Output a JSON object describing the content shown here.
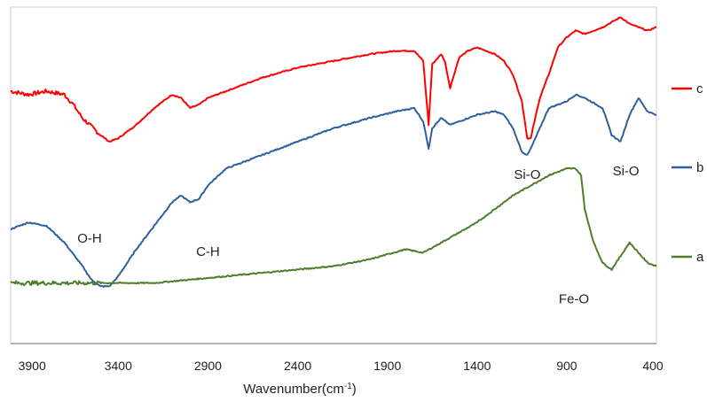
{
  "chart_data": {
    "type": "line",
    "title": "",
    "xlabel": "Wavenumber(cm",
    "xlabel_sup": "-1",
    "xlabel_close": ")",
    "ylabel": "",
    "xlim": [
      4000,
      400
    ],
    "x_reversed": true,
    "y_unit_range": [
      0,
      100
    ],
    "xticks": [
      3900,
      3400,
      2900,
      2400,
      1900,
      1400,
      900,
      400
    ],
    "grid": false,
    "legend_placement": "right",
    "series": [
      {
        "name": "c",
        "color": "#ff0000",
        "points": [
          [
            4000,
            75
          ],
          [
            3900,
            74
          ],
          [
            3800,
            75
          ],
          [
            3700,
            74
          ],
          [
            3650,
            71
          ],
          [
            3600,
            67
          ],
          [
            3500,
            62
          ],
          [
            3450,
            60
          ],
          [
            3400,
            61
          ],
          [
            3300,
            65
          ],
          [
            3200,
            70
          ],
          [
            3100,
            74
          ],
          [
            3050,
            73
          ],
          [
            3000,
            70
          ],
          [
            2950,
            71
          ],
          [
            2900,
            73
          ],
          [
            2800,
            75
          ],
          [
            2600,
            79
          ],
          [
            2400,
            82
          ],
          [
            2200,
            84
          ],
          [
            2000,
            86
          ],
          [
            1850,
            87
          ],
          [
            1750,
            87
          ],
          [
            1700,
            84
          ],
          [
            1670,
            65
          ],
          [
            1650,
            83
          ],
          [
            1600,
            86
          ],
          [
            1580,
            84
          ],
          [
            1550,
            76
          ],
          [
            1500,
            85
          ],
          [
            1450,
            87
          ],
          [
            1400,
            88
          ],
          [
            1350,
            87
          ],
          [
            1300,
            86
          ],
          [
            1250,
            84
          ],
          [
            1200,
            80
          ],
          [
            1150,
            72
          ],
          [
            1120,
            61
          ],
          [
            1100,
            61
          ],
          [
            1080,
            66
          ],
          [
            1050,
            73
          ],
          [
            1000,
            80
          ],
          [
            950,
            88
          ],
          [
            900,
            91
          ],
          [
            850,
            93
          ],
          [
            800,
            92
          ],
          [
            700,
            94
          ],
          [
            600,
            97
          ],
          [
            550,
            95
          ],
          [
            500,
            94
          ],
          [
            450,
            93
          ],
          [
            400,
            94
          ]
        ]
      },
      {
        "name": "b",
        "color": "#2e5f9e",
        "points": [
          [
            4000,
            34
          ],
          [
            3900,
            36
          ],
          [
            3800,
            35
          ],
          [
            3700,
            30
          ],
          [
            3600,
            23
          ],
          [
            3550,
            19
          ],
          [
            3500,
            17
          ],
          [
            3450,
            17
          ],
          [
            3400,
            20
          ],
          [
            3300,
            28
          ],
          [
            3200,
            35
          ],
          [
            3100,
            42
          ],
          [
            3050,
            44
          ],
          [
            3000,
            42
          ],
          [
            2950,
            43
          ],
          [
            2900,
            47
          ],
          [
            2800,
            52
          ],
          [
            2600,
            56
          ],
          [
            2400,
            60
          ],
          [
            2200,
            64
          ],
          [
            2000,
            67
          ],
          [
            1850,
            69
          ],
          [
            1750,
            70
          ],
          [
            1700,
            66
          ],
          [
            1670,
            58
          ],
          [
            1650,
            64
          ],
          [
            1600,
            67
          ],
          [
            1550,
            65
          ],
          [
            1500,
            66
          ],
          [
            1450,
            67
          ],
          [
            1400,
            68
          ],
          [
            1300,
            69
          ],
          [
            1250,
            68
          ],
          [
            1200,
            64
          ],
          [
            1150,
            57
          ],
          [
            1120,
            56
          ],
          [
            1100,
            58
          ],
          [
            1050,
            64
          ],
          [
            1000,
            70
          ],
          [
            950,
            71
          ],
          [
            900,
            72
          ],
          [
            850,
            74
          ],
          [
            800,
            73
          ],
          [
            700,
            70
          ],
          [
            650,
            62
          ],
          [
            600,
            60
          ],
          [
            550,
            68
          ],
          [
            500,
            73
          ],
          [
            450,
            69
          ],
          [
            400,
            68
          ]
        ]
      },
      {
        "name": "a",
        "color": "#4d7f2a",
        "points": [
          [
            4000,
            18
          ],
          [
            3800,
            18
          ],
          [
            3600,
            18
          ],
          [
            3400,
            18
          ],
          [
            3200,
            18
          ],
          [
            3000,
            19
          ],
          [
            2800,
            20
          ],
          [
            2600,
            21
          ],
          [
            2400,
            22
          ],
          [
            2200,
            23
          ],
          [
            2000,
            25
          ],
          [
            1800,
            28
          ],
          [
            1700,
            27
          ],
          [
            1600,
            30
          ],
          [
            1400,
            36
          ],
          [
            1200,
            44
          ],
          [
            1000,
            50
          ],
          [
            900,
            52
          ],
          [
            850,
            52
          ],
          [
            820,
            50
          ],
          [
            800,
            40
          ],
          [
            750,
            30
          ],
          [
            700,
            24
          ],
          [
            650,
            22
          ],
          [
            600,
            26
          ],
          [
            550,
            30
          ],
          [
            500,
            27
          ],
          [
            450,
            24
          ],
          [
            400,
            23
          ]
        ]
      }
    ],
    "annotations": [
      {
        "text": "O-H",
        "x": 3560,
        "y": 30
      },
      {
        "text": "C-H",
        "x": 2900,
        "y": 26
      },
      {
        "text": "Si-O",
        "x": 1120,
        "y": 49
      },
      {
        "text": "Si-O",
        "x": 570,
        "y": 50
      },
      {
        "text": "Fe-O",
        "x": 860,
        "y": 12
      }
    ]
  }
}
